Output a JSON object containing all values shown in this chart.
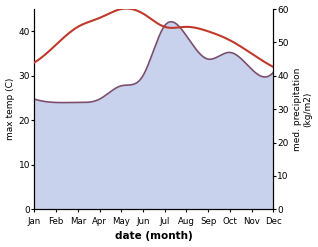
{
  "months": [
    "Jan",
    "Feb",
    "Mar",
    "Apr",
    "May",
    "Jun",
    "Jul",
    "Aug",
    "Sep",
    "Oct",
    "Nov",
    "Dec"
  ],
  "max_temp": [
    33,
    37,
    41,
    43,
    45,
    44,
    41,
    41,
    40,
    38,
    35,
    32
  ],
  "precipitation": [
    33,
    32,
    32,
    33,
    37,
    40,
    55,
    52,
    45,
    47,
    42,
    41
  ],
  "temp_color": "#c0392b",
  "precip_color": "#7b4f6e",
  "fill_color": "#b8c4e8",
  "fill_alpha": 0.75,
  "xlabel": "date (month)",
  "ylabel_left": "max temp (C)",
  "ylabel_right": "med. precipitation\n(kg/m2)",
  "ylim_left": [
    0,
    45
  ],
  "ylim_right": [
    0,
    60
  ],
  "yticks_left": [
    0,
    10,
    20,
    30,
    40
  ],
  "yticks_right": [
    0,
    10,
    20,
    30,
    40,
    50,
    60
  ]
}
